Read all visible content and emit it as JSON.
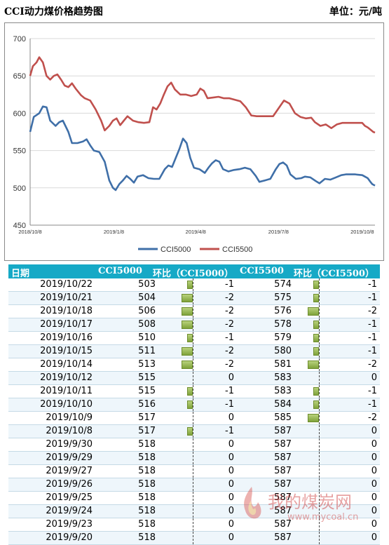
{
  "header": {
    "title": "CCI动力煤价格趋势图",
    "unit": "单位：元/吨"
  },
  "chart_data": {
    "type": "line",
    "ylim": [
      450,
      700
    ],
    "yticks": [
      450,
      500,
      550,
      600,
      650,
      700
    ],
    "xlim": [
      "2018-10-08",
      "2019-10-22"
    ],
    "xtick_labels": [
      "2018/10/8",
      "2019/1/8",
      "2019/4/8",
      "2019/7/8",
      "2019/10/8"
    ],
    "xticks": [
      "2018-10-08",
      "2019-01-08",
      "2019-04-08",
      "2019-07-08",
      "2019-10-08"
    ],
    "legend_position": "bottom",
    "series": [
      {
        "name": "CCI5000",
        "color": "#3f6fa8",
        "points": [
          [
            "2018-10-08",
            575
          ],
          [
            "2018-10-12",
            595
          ],
          [
            "2018-10-18",
            600
          ],
          [
            "2018-10-22",
            609
          ],
          [
            "2018-10-26",
            608
          ],
          [
            "2018-10-30",
            590
          ],
          [
            "2018-11-05",
            583
          ],
          [
            "2018-11-09",
            588
          ],
          [
            "2018-11-13",
            590
          ],
          [
            "2018-11-19",
            575
          ],
          [
            "2018-11-23",
            560
          ],
          [
            "2018-11-29",
            560
          ],
          [
            "2018-12-05",
            562
          ],
          [
            "2018-12-09",
            565
          ],
          [
            "2018-12-13",
            557
          ],
          [
            "2018-12-17",
            550
          ],
          [
            "2018-12-23",
            548
          ],
          [
            "2018-12-29",
            535
          ],
          [
            "2019-01-03",
            510
          ],
          [
            "2019-01-07",
            500
          ],
          [
            "2019-01-10",
            497
          ],
          [
            "2019-01-14",
            505
          ],
          [
            "2019-01-18",
            510
          ],
          [
            "2019-01-22",
            516
          ],
          [
            "2019-01-26",
            512
          ],
          [
            "2019-01-30",
            507
          ],
          [
            "2019-02-03",
            515
          ],
          [
            "2019-02-09",
            517
          ],
          [
            "2019-02-15",
            513
          ],
          [
            "2019-02-21",
            512
          ],
          [
            "2019-02-27",
            512
          ],
          [
            "2019-03-05",
            525
          ],
          [
            "2019-03-09",
            530
          ],
          [
            "2019-03-13",
            528
          ],
          [
            "2019-03-17",
            540
          ],
          [
            "2019-03-21",
            552
          ],
          [
            "2019-03-25",
            566
          ],
          [
            "2019-03-29",
            560
          ],
          [
            "2019-04-02",
            540
          ],
          [
            "2019-04-06",
            527
          ],
          [
            "2019-04-12",
            525
          ],
          [
            "2019-04-18",
            520
          ],
          [
            "2019-04-22",
            527
          ],
          [
            "2019-04-26",
            533
          ],
          [
            "2019-04-30",
            537
          ],
          [
            "2019-05-04",
            535
          ],
          [
            "2019-05-08",
            525
          ],
          [
            "2019-05-14",
            522
          ],
          [
            "2019-05-20",
            524
          ],
          [
            "2019-05-26",
            525
          ],
          [
            "2019-06-01",
            527
          ],
          [
            "2019-06-07",
            525
          ],
          [
            "2019-06-13",
            516
          ],
          [
            "2019-06-17",
            508
          ],
          [
            "2019-06-23",
            510
          ],
          [
            "2019-06-29",
            512
          ],
          [
            "2019-07-05",
            525
          ],
          [
            "2019-07-09",
            532
          ],
          [
            "2019-07-13",
            534
          ],
          [
            "2019-07-17",
            530
          ],
          [
            "2019-07-21",
            518
          ],
          [
            "2019-07-27",
            512
          ],
          [
            "2019-08-02",
            513
          ],
          [
            "2019-08-06",
            515
          ],
          [
            "2019-08-12",
            514
          ],
          [
            "2019-08-18",
            509
          ],
          [
            "2019-08-22",
            506
          ],
          [
            "2019-08-28",
            512
          ],
          [
            "2019-09-03",
            511
          ],
          [
            "2019-09-09",
            514
          ],
          [
            "2019-09-15",
            517
          ],
          [
            "2019-09-20",
            518
          ],
          [
            "2019-09-30",
            518
          ],
          [
            "2019-10-08",
            517
          ],
          [
            "2019-10-11",
            515
          ],
          [
            "2019-10-14",
            513
          ],
          [
            "2019-10-17",
            508
          ],
          [
            "2019-10-19",
            505
          ],
          [
            "2019-10-22",
            503
          ]
        ]
      },
      {
        "name": "CCI5500",
        "color": "#c0504d",
        "points": [
          [
            "2018-10-08",
            650
          ],
          [
            "2018-10-11",
            663
          ],
          [
            "2018-10-15",
            668
          ],
          [
            "2018-10-18",
            675
          ],
          [
            "2018-10-22",
            668
          ],
          [
            "2018-10-26",
            650
          ],
          [
            "2018-10-30",
            645
          ],
          [
            "2018-11-03",
            650
          ],
          [
            "2018-11-07",
            652
          ],
          [
            "2018-11-11",
            645
          ],
          [
            "2018-11-15",
            637
          ],
          [
            "2018-11-19",
            635
          ],
          [
            "2018-11-23",
            640
          ],
          [
            "2018-11-27",
            633
          ],
          [
            "2018-12-03",
            624
          ],
          [
            "2018-12-07",
            620
          ],
          [
            "2018-12-13",
            617
          ],
          [
            "2018-12-19",
            605
          ],
          [
            "2018-12-25",
            590
          ],
          [
            "2018-12-29",
            577
          ],
          [
            "2019-01-03",
            583
          ],
          [
            "2019-01-07",
            590
          ],
          [
            "2019-01-11",
            593
          ],
          [
            "2019-01-15",
            584
          ],
          [
            "2019-01-19",
            590
          ],
          [
            "2019-01-23",
            596
          ],
          [
            "2019-01-29",
            590
          ],
          [
            "2019-02-04",
            588
          ],
          [
            "2019-02-10",
            587
          ],
          [
            "2019-02-16",
            588
          ],
          [
            "2019-02-20",
            608
          ],
          [
            "2019-02-24",
            605
          ],
          [
            "2019-02-28",
            613
          ],
          [
            "2019-03-04",
            625
          ],
          [
            "2019-03-08",
            636
          ],
          [
            "2019-03-12",
            641
          ],
          [
            "2019-03-16",
            632
          ],
          [
            "2019-03-22",
            625
          ],
          [
            "2019-03-28",
            625
          ],
          [
            "2019-04-03",
            623
          ],
          [
            "2019-04-09",
            625
          ],
          [
            "2019-04-13",
            633
          ],
          [
            "2019-04-17",
            630
          ],
          [
            "2019-04-21",
            620
          ],
          [
            "2019-04-27",
            621
          ],
          [
            "2019-05-03",
            622
          ],
          [
            "2019-05-09",
            620
          ],
          [
            "2019-05-15",
            620
          ],
          [
            "2019-05-21",
            618
          ],
          [
            "2019-05-27",
            616
          ],
          [
            "2019-06-02",
            608
          ],
          [
            "2019-06-08",
            597
          ],
          [
            "2019-06-14",
            596
          ],
          [
            "2019-06-20",
            596
          ],
          [
            "2019-06-26",
            596
          ],
          [
            "2019-07-02",
            596
          ],
          [
            "2019-07-06",
            603
          ],
          [
            "2019-07-10",
            610
          ],
          [
            "2019-07-14",
            617
          ],
          [
            "2019-07-20",
            613
          ],
          [
            "2019-07-26",
            600
          ],
          [
            "2019-08-01",
            595
          ],
          [
            "2019-08-07",
            593
          ],
          [
            "2019-08-13",
            594
          ],
          [
            "2019-08-17",
            588
          ],
          [
            "2019-08-23",
            583
          ],
          [
            "2019-08-29",
            585
          ],
          [
            "2019-09-04",
            580
          ],
          [
            "2019-09-10",
            585
          ],
          [
            "2019-09-16",
            587
          ],
          [
            "2019-09-20",
            587
          ],
          [
            "2019-09-30",
            587
          ],
          [
            "2019-10-08",
            587
          ],
          [
            "2019-10-11",
            583
          ],
          [
            "2019-10-14",
            581
          ],
          [
            "2019-10-17",
            578
          ],
          [
            "2019-10-20",
            575
          ],
          [
            "2019-10-22",
            574
          ]
        ]
      }
    ]
  },
  "table": {
    "headers": [
      "日期",
      "CCI5000",
      "环比（CCI5000）",
      "CCI5500",
      "环比（CCI5500）"
    ],
    "rows": [
      {
        "date": "2019/10/22",
        "v5000": "503",
        "r5000": "-1",
        "v5500": "574",
        "r5500": "-1"
      },
      {
        "date": "2019/10/21",
        "v5000": "504",
        "r5000": "-2",
        "v5500": "575",
        "r5500": "-1"
      },
      {
        "date": "2019/10/18",
        "v5000": "506",
        "r5000": "-2",
        "v5500": "576",
        "r5500": "-2"
      },
      {
        "date": "2019/10/17",
        "v5000": "508",
        "r5000": "-2",
        "v5500": "578",
        "r5500": "-1"
      },
      {
        "date": "2019/10/16",
        "v5000": "510",
        "r5000": "-1",
        "v5500": "579",
        "r5500": "-1"
      },
      {
        "date": "2019/10/15",
        "v5000": "511",
        "r5000": "-2",
        "v5500": "580",
        "r5500": "-1"
      },
      {
        "date": "2019/10/14",
        "v5000": "513",
        "r5000": "-2",
        "v5500": "581",
        "r5500": "-2"
      },
      {
        "date": "2019/10/12",
        "v5000": "515",
        "r5000": "0",
        "v5500": "583",
        "r5500": "0"
      },
      {
        "date": "2019/10/11",
        "v5000": "515",
        "r5000": "-1",
        "v5500": "583",
        "r5500": "-1"
      },
      {
        "date": "2019/10/10",
        "v5000": "516",
        "r5000": "-1",
        "v5500": "584",
        "r5500": "-1"
      },
      {
        "date": "2019/10/9",
        "v5000": "517",
        "r5000": "0",
        "v5500": "585",
        "r5500": "-2"
      },
      {
        "date": "2019/10/8",
        "v5000": "517",
        "r5000": "-1",
        "v5500": "587",
        "r5500": "0"
      },
      {
        "date": "2019/9/30",
        "v5000": "518",
        "r5000": "0",
        "v5500": "587",
        "r5500": "0"
      },
      {
        "date": "2019/9/29",
        "v5000": "518",
        "r5000": "0",
        "v5500": "587",
        "r5500": "0"
      },
      {
        "date": "2019/9/27",
        "v5000": "518",
        "r5000": "0",
        "v5500": "587",
        "r5500": "0"
      },
      {
        "date": "2019/9/26",
        "v5000": "518",
        "r5000": "0",
        "v5500": "587",
        "r5500": "0"
      },
      {
        "date": "2019/9/25",
        "v5000": "518",
        "r5000": "0",
        "v5500": "587",
        "r5500": "0"
      },
      {
        "date": "2019/9/24",
        "v5000": "518",
        "r5000": "0",
        "v5500": "587",
        "r5500": "0"
      },
      {
        "date": "2019/9/23",
        "v5000": "518",
        "r5000": "0",
        "v5500": "587",
        "r5500": "0"
      },
      {
        "date": "2019/9/20",
        "v5000": "518",
        "r5000": "0",
        "v5500": "587",
        "r5500": "0"
      }
    ]
  },
  "watermark": {
    "text": "我的煤炭网",
    "url": "www.mycoal.cn"
  }
}
